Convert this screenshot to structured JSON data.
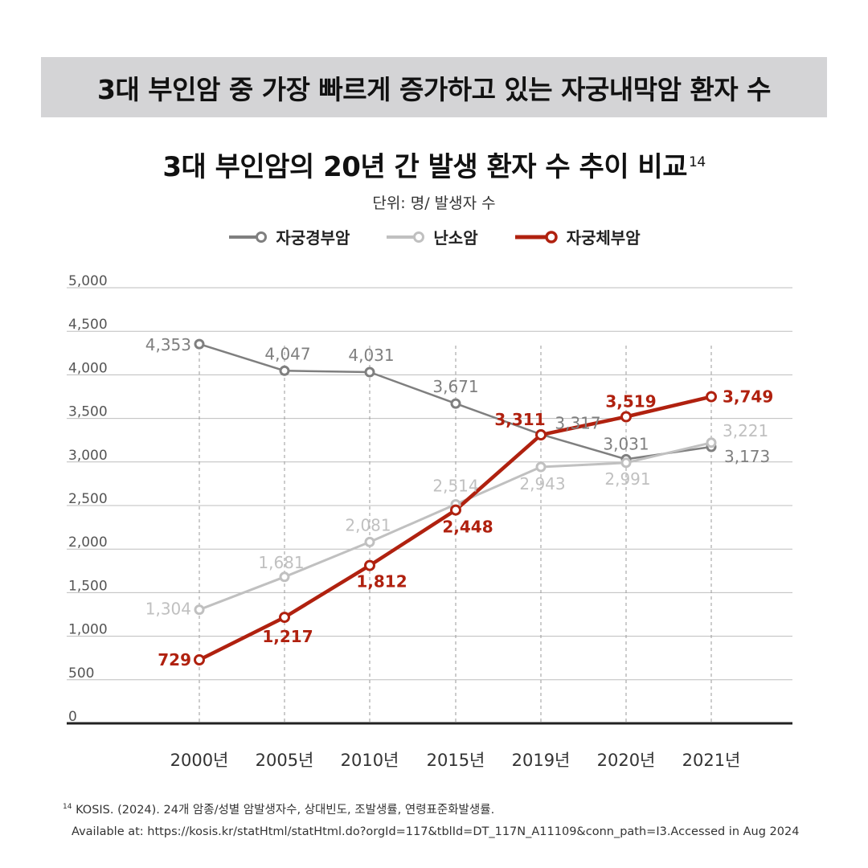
{
  "header": {
    "banner": "3대 부인암 중 가장 빠르게 증가하고 있는 자궁내막암  환자 수"
  },
  "chart_data": {
    "type": "line",
    "title": "3대 부인암의 20년 간 발생 환자 수 추이 비교",
    "title_ref": "14",
    "unit_label": "단위: 명/ 발생자 수",
    "categories": [
      "2000년",
      "2005년",
      "2010년",
      "2015년",
      "2019년",
      "2020년",
      "2021년"
    ],
    "ylim": [
      0,
      5000
    ],
    "yticks": [
      0,
      500,
      1000,
      1500,
      2000,
      2500,
      3000,
      3500,
      4000,
      4500,
      5000
    ],
    "ytick_labels": [
      "0",
      "500",
      "1,000",
      "1,500",
      "2,000",
      "2,500",
      "3,000",
      "3,500",
      "4,000",
      "4,500",
      "5,000"
    ],
    "grid": true,
    "legend_position": "top-center",
    "series": [
      {
        "name": "자궁경부암",
        "color": "#7f7f7f",
        "values": [
          4353,
          4047,
          4031,
          3671,
          3317,
          3031,
          3173
        ],
        "labels": [
          "4,353",
          "4,047",
          "4,031",
          "3,671",
          "3,317",
          "3,031",
          "3,173"
        ]
      },
      {
        "name": "난소암",
        "color": "#c0c0c0",
        "values": [
          1304,
          1681,
          2081,
          2514,
          2943,
          2991,
          3221
        ],
        "labels": [
          "1,304",
          "1,681",
          "2,081",
          "2,514",
          "2,943",
          "2,991",
          "3,221"
        ]
      },
      {
        "name": "자궁체부암",
        "color": "#b0210f",
        "values": [
          729,
          1217,
          1812,
          2448,
          3311,
          3519,
          3749
        ],
        "labels": [
          "729",
          "1,217",
          "1,812",
          "2,448",
          "3,311",
          "3,519",
          "3,749"
        ]
      }
    ]
  },
  "footnote": {
    "ref": "14",
    "text": "KOSIS. (2024). 24개 암종/성별 암발생자수, 상대빈도, 조발생률, 연령표준화발생률.",
    "source": "Available at:  https://kosis.kr/statHtml/statHtml.do?orgId=117&tblId=DT_117N_A11109&conn_path=I3.Accessed in Aug 2024"
  }
}
